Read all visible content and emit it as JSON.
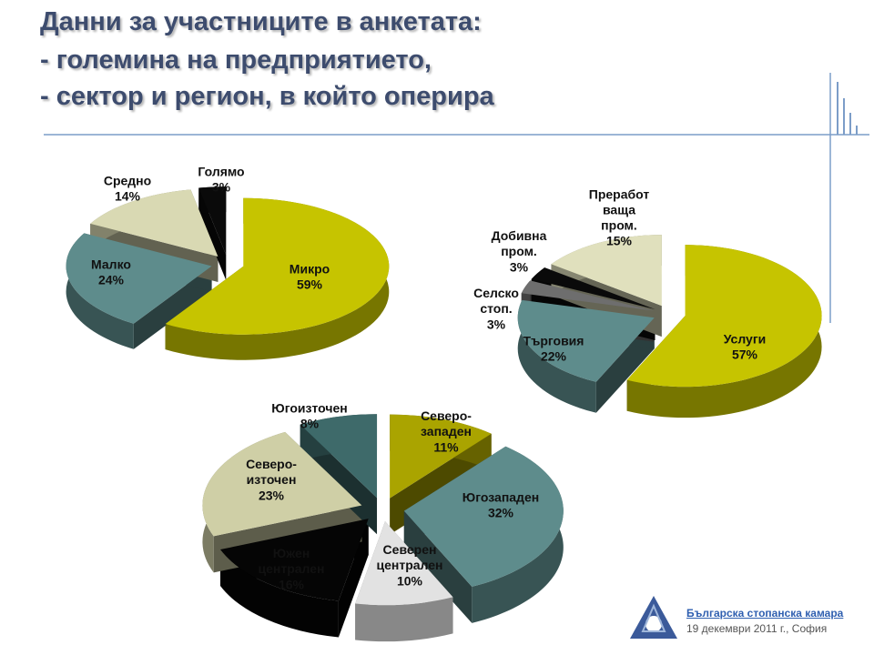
{
  "title": [
    "Данни за участниците в анкетата:",
    "- големина на предприятието,",
    "- сектор и регион, в който оперира"
  ],
  "footer": {
    "organization": "Българска стопанска камара",
    "date": "19 декември 2011 г., София"
  },
  "chart_data": [
    {
      "type": "pie",
      "categories": [
        "Микро",
        "Малко",
        "Средно",
        "Голямо"
      ],
      "values": [
        59,
        24,
        14,
        3
      ],
      "value_labels": [
        "59%",
        "24%",
        "14%",
        "3%"
      ],
      "colors": [
        "#c6c400",
        "#5e8c8c",
        "#d9d9b3",
        "#0a0a0a"
      ]
    },
    {
      "type": "pie",
      "categories": [
        "Услуги",
        "Търговия",
        "Селско\nстоп.",
        "Добивна\nпром.",
        "Преработ\nваща\nпром."
      ],
      "values": [
        57,
        22,
        3,
        3,
        15
      ],
      "value_labels": [
        "57%",
        "22%",
        "3%",
        "3%",
        "15%"
      ],
      "colors": [
        "#c6c400",
        "#5e8c8c",
        "#6e6e6e",
        "#0a0a0a",
        "#e0e0bd"
      ]
    },
    {
      "type": "pie",
      "categories": [
        "Северо-\nзападен",
        "Югозападен",
        "Северен\nцентрален",
        "Южен\nцентрален",
        "Северо-\nизточен",
        "Югоизточен"
      ],
      "values": [
        11,
        32,
        10,
        16,
        23,
        8
      ],
      "value_labels": [
        "11%",
        "32%",
        "10%",
        "16%",
        "23%",
        "8%"
      ],
      "colors": [
        "#aaa400",
        "#5e8c8c",
        "#e2e2e2",
        "#050505",
        "#cfcfa6",
        "#3e6a6a"
      ]
    }
  ]
}
